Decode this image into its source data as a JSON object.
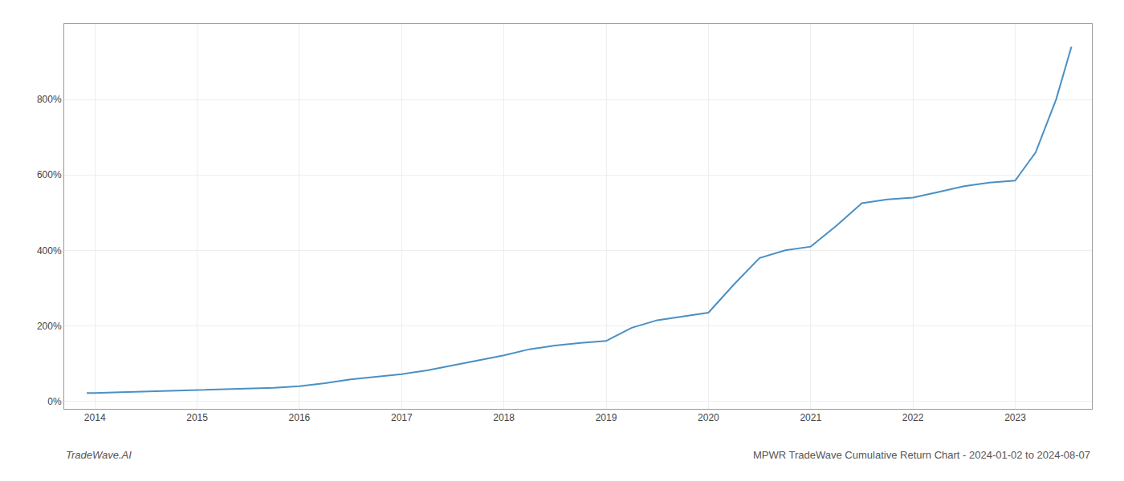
{
  "chart_data": {
    "type": "line",
    "x": [
      2013.92,
      2014.0,
      2014.25,
      2014.5,
      2014.75,
      2015.0,
      2015.25,
      2015.5,
      2015.75,
      2016.0,
      2016.25,
      2016.5,
      2016.75,
      2017.0,
      2017.25,
      2017.5,
      2017.75,
      2018.0,
      2018.25,
      2018.5,
      2018.75,
      2019.0,
      2019.25,
      2019.5,
      2019.75,
      2020.0,
      2020.25,
      2020.5,
      2020.75,
      2021.0,
      2021.25,
      2021.5,
      2021.75,
      2022.0,
      2022.25,
      2022.5,
      2022.75,
      2023.0,
      2023.2,
      2023.4,
      2023.55
    ],
    "values": [
      22,
      22,
      24,
      26,
      28,
      30,
      31,
      33,
      36,
      40,
      48,
      58,
      65,
      72,
      82,
      95,
      108,
      122,
      138,
      148,
      155,
      160,
      195,
      215,
      225,
      235,
      310,
      380,
      400,
      410,
      465,
      525,
      535,
      540,
      555,
      570,
      580,
      585,
      660,
      800,
      940
    ],
    "color": "#4a90c4",
    "xlim": [
      2013.7,
      2023.75
    ],
    "xticks": [
      2014,
      2015,
      2016,
      2017,
      2018,
      2019,
      2020,
      2021,
      2022,
      2023
    ],
    "ylim": [
      -20,
      1000
    ],
    "yticks": [
      {
        "value": 0,
        "label": "0%"
      },
      {
        "value": 200,
        "label": "200%"
      },
      {
        "value": 400,
        "label": "400%"
      },
      {
        "value": 600,
        "label": "600%"
      },
      {
        "value": 800,
        "label": "800%"
      }
    ],
    "grid": true,
    "annotations": [
      "TradeWave.AI",
      "MPWR TradeWave Cumulative Return Chart - 2024-01-02 to 2024-08-07"
    ]
  }
}
